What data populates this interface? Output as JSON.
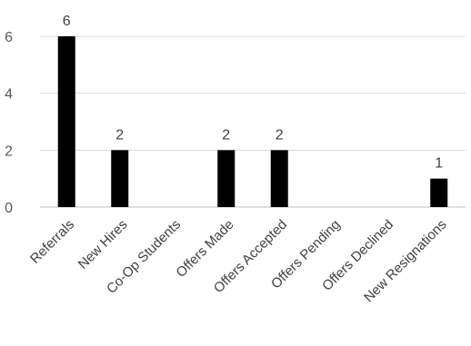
{
  "chart_data": {
    "type": "bar",
    "categories": [
      "Referrals",
      "New Hires",
      "Co-Op Students",
      "Offers Made",
      "Offers Accepted",
      "Offers Pending",
      "Offers Declined",
      "New Resignations"
    ],
    "values": [
      6,
      2,
      0,
      2,
      2,
      0,
      0,
      1
    ],
    "data_labels": [
      "6",
      "2",
      "",
      "2",
      "2",
      "",
      "",
      "1"
    ],
    "yticks": [
      0,
      2,
      4,
      6
    ],
    "ylim": [
      0,
      6.4
    ],
    "grid": true,
    "colors": {
      "bar": "#000000",
      "grid": "#d9d9d9",
      "axis": "#bfbfbf"
    }
  }
}
